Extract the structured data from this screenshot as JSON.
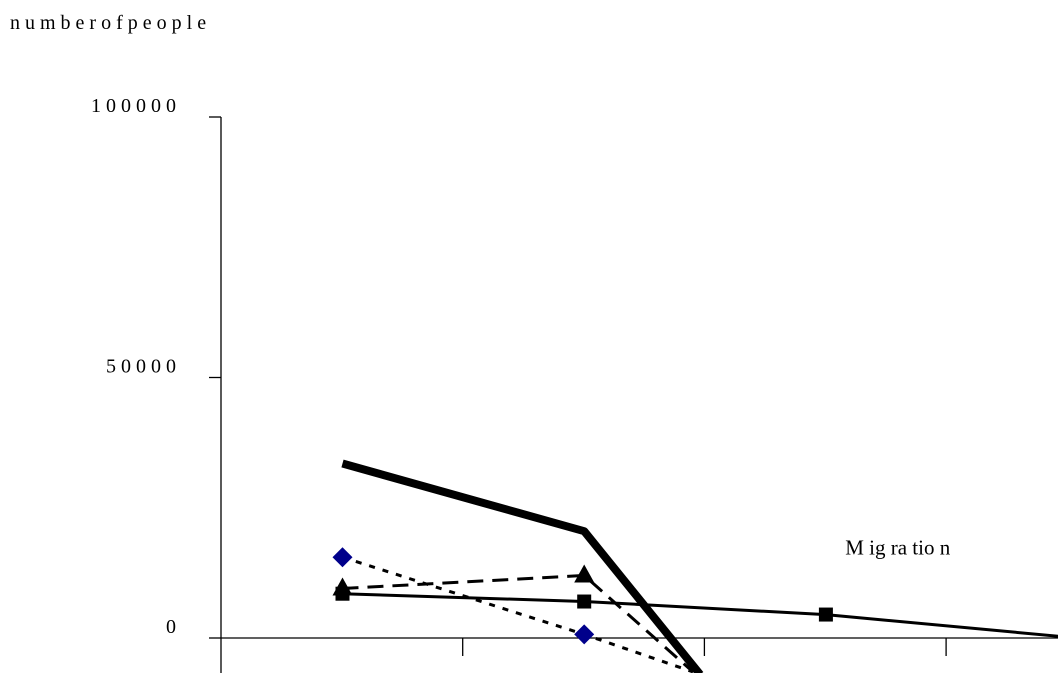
{
  "chart_data": {
    "type": "line",
    "ylabel": "n u m  b e r  o f  p e o p l e",
    "y_ticks": [
      {
        "value": 0,
        "label": "0"
      },
      {
        "value": 50000,
        "label": "5 0 0 0 0"
      },
      {
        "value": 100000,
        "label": "1 0 0 0 0 0"
      }
    ],
    "ylim": [
      -7000,
      100000
    ],
    "x_positions": [
      1,
      2,
      3,
      4
    ],
    "xlim": [
      0.5,
      4.5
    ],
    "grid": false,
    "annotations": [
      {
        "text": "M  ig  ra  tio  n",
        "x": 3.08,
        "y": 16000
      }
    ],
    "series": [
      {
        "style": "thick-solid",
        "marker": "none",
        "color": "#000000",
        "points": [
          [
            1,
            33500
          ],
          [
            2,
            20500
          ],
          [
            2.48,
            -7000
          ]
        ]
      },
      {
        "name": "Migration",
        "style": "solid",
        "marker": "square",
        "color": "#000000",
        "points": [
          [
            1,
            8500
          ],
          [
            2,
            7000
          ],
          [
            3,
            4500
          ],
          [
            4.5,
            -2000
          ]
        ]
      },
      {
        "style": "dashed",
        "marker": "triangle",
        "color": "#000000",
        "points": [
          [
            1,
            9500
          ],
          [
            2,
            12000
          ],
          [
            2.45,
            -6500
          ]
        ]
      },
      {
        "style": "dotted",
        "marker": "diamond",
        "color": "#000000",
        "marker_color": "#00008B",
        "points": [
          [
            1,
            15500
          ],
          [
            2,
            700
          ],
          [
            2.45,
            -6500
          ]
        ]
      }
    ]
  }
}
